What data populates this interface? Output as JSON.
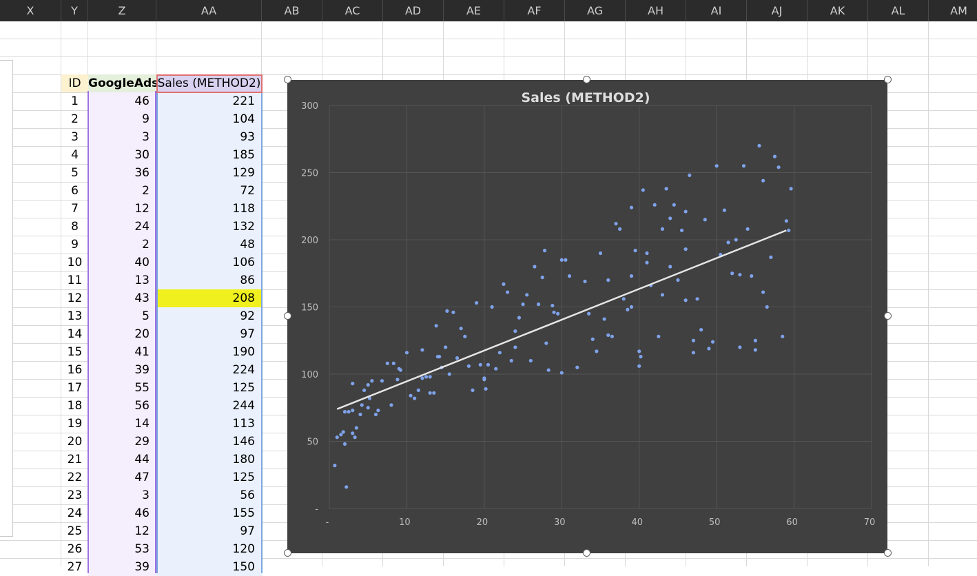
{
  "columns": [
    {
      "label": "X",
      "w": 89
    },
    {
      "label": "Y",
      "w": 39
    },
    {
      "label": "Z",
      "w": 99
    },
    {
      "label": "AA",
      "w": 153
    },
    {
      "label": "AB",
      "w": 88
    },
    {
      "label": "AC",
      "w": 88
    },
    {
      "label": "AD",
      "w": 88
    },
    {
      "label": "AE",
      "w": 88
    },
    {
      "label": "AF",
      "w": 88
    },
    {
      "label": "AG",
      "w": 88
    },
    {
      "label": "AH",
      "w": 88
    },
    {
      "label": "AI",
      "w": 88
    },
    {
      "label": "AJ",
      "w": 88
    },
    {
      "label": "AK",
      "w": 88
    },
    {
      "label": "AL",
      "w": 88
    },
    {
      "label": "AM",
      "w": 88
    }
  ],
  "table": {
    "headers": {
      "id": "ID",
      "googleads": "GoogleAds",
      "sales": "Sales (METHOD2)"
    },
    "rows": [
      {
        "id": "1",
        "g": "46",
        "s": "221"
      },
      {
        "id": "2",
        "g": "9",
        "s": "104"
      },
      {
        "id": "3",
        "g": "3",
        "s": "93"
      },
      {
        "id": "4",
        "g": "30",
        "s": "185"
      },
      {
        "id": "5",
        "g": "36",
        "s": "129"
      },
      {
        "id": "6",
        "g": "2",
        "s": "72"
      },
      {
        "id": "7",
        "g": "12",
        "s": "118"
      },
      {
        "id": "8",
        "g": "24",
        "s": "132"
      },
      {
        "id": "9",
        "g": "2",
        "s": "48"
      },
      {
        "id": "10",
        "g": "40",
        "s": "106"
      },
      {
        "id": "11",
        "g": "13",
        "s": "86"
      },
      {
        "id": "12",
        "g": "43",
        "s": "208",
        "highlight": true
      },
      {
        "id": "13",
        "g": "5",
        "s": "92"
      },
      {
        "id": "14",
        "g": "20",
        "s": "97"
      },
      {
        "id": "15",
        "g": "41",
        "s": "190"
      },
      {
        "id": "16",
        "g": "39",
        "s": "224"
      },
      {
        "id": "17",
        "g": "55",
        "s": "125"
      },
      {
        "id": "18",
        "g": "56",
        "s": "244"
      },
      {
        "id": "19",
        "g": "14",
        "s": "113"
      },
      {
        "id": "20",
        "g": "29",
        "s": "146"
      },
      {
        "id": "21",
        "g": "44",
        "s": "180"
      },
      {
        "id": "22",
        "g": "47",
        "s": "125"
      },
      {
        "id": "23",
        "g": "3",
        "s": "56"
      },
      {
        "id": "24",
        "g": "46",
        "s": "155"
      },
      {
        "id": "25",
        "g": "12",
        "s": "97"
      },
      {
        "id": "26",
        "g": "53",
        "s": "120"
      },
      {
        "id": "27",
        "g": "39",
        "s": "150"
      }
    ]
  },
  "colors": {
    "chart_bg": "#404040",
    "point": "#7fa2ea",
    "trend": "#e6e6e6",
    "highlight": "#f0f01e"
  },
  "chart_data": {
    "type": "scatter",
    "title": "Sales (METHOD2)",
    "xlabel": "",
    "ylabel": "",
    "xlim": [
      0,
      70
    ],
    "ylim": [
      0,
      300
    ],
    "xticks": [
      "-",
      "10",
      "20",
      "30",
      "40",
      "50",
      "60",
      "70"
    ],
    "yticks": [
      "-",
      "50",
      "100",
      "150",
      "200",
      "250",
      "300"
    ],
    "grid": true,
    "legend": "none",
    "trendline": {
      "type": "linear",
      "x": [
        1,
        59
      ],
      "y": [
        74,
        207
      ]
    },
    "points": [
      [
        46,
        221
      ],
      [
        9,
        104
      ],
      [
        3,
        93
      ],
      [
        30,
        185
      ],
      [
        36,
        129
      ],
      [
        2,
        72
      ],
      [
        12,
        118
      ],
      [
        24,
        132
      ],
      [
        2,
        48
      ],
      [
        40,
        106
      ],
      [
        13,
        86
      ],
      [
        43,
        208
      ],
      [
        5,
        92
      ],
      [
        20,
        97
      ],
      [
        41,
        190
      ],
      [
        39,
        224
      ],
      [
        55,
        125
      ],
      [
        56,
        244
      ],
      [
        14,
        113
      ],
      [
        29,
        146
      ],
      [
        44,
        180
      ],
      [
        47,
        125
      ],
      [
        3,
        56
      ],
      [
        46,
        155
      ],
      [
        12,
        97
      ],
      [
        53,
        120
      ],
      [
        39,
        150
      ],
      [
        0.7,
        32
      ],
      [
        1,
        53
      ],
      [
        1.5,
        55
      ],
      [
        1.8,
        57
      ],
      [
        2.2,
        16
      ],
      [
        2.5,
        72
      ],
      [
        3,
        73
      ],
      [
        3.3,
        53
      ],
      [
        3.5,
        60
      ],
      [
        4,
        70
      ],
      [
        4.2,
        77
      ],
      [
        4.5,
        88
      ],
      [
        5,
        75
      ],
      [
        5.2,
        82
      ],
      [
        5.5,
        95
      ],
      [
        6,
        70
      ],
      [
        6.3,
        73
      ],
      [
        6.8,
        95
      ],
      [
        7.5,
        108
      ],
      [
        8,
        77
      ],
      [
        8.3,
        108
      ],
      [
        8.8,
        96
      ],
      [
        9.2,
        103
      ],
      [
        10,
        116
      ],
      [
        10.5,
        84
      ],
      [
        11,
        82
      ],
      [
        11.5,
        88
      ],
      [
        12.5,
        98
      ],
      [
        13,
        98
      ],
      [
        13.5,
        86
      ],
      [
        13.8,
        136
      ],
      [
        14.2,
        113
      ],
      [
        14.5,
        105
      ],
      [
        15,
        120
      ],
      [
        15.2,
        147
      ],
      [
        15.5,
        100
      ],
      [
        16,
        146
      ],
      [
        16.5,
        112
      ],
      [
        17,
        134
      ],
      [
        17.5,
        128
      ],
      [
        18,
        106
      ],
      [
        18.5,
        88
      ],
      [
        19,
        153
      ],
      [
        19.5,
        107
      ],
      [
        20,
        96
      ],
      [
        20.2,
        89
      ],
      [
        20.5,
        107
      ],
      [
        21,
        150
      ],
      [
        21.5,
        104
      ],
      [
        22,
        116
      ],
      [
        22.5,
        167
      ],
      [
        23,
        161
      ],
      [
        23.5,
        110
      ],
      [
        24,
        120
      ],
      [
        24.5,
        142
      ],
      [
        25,
        152
      ],
      [
        25.5,
        159
      ],
      [
        26,
        110
      ],
      [
        26.5,
        180
      ],
      [
        27,
        152
      ],
      [
        27.5,
        172
      ],
      [
        27.8,
        192
      ],
      [
        28,
        123
      ],
      [
        28.3,
        103
      ],
      [
        28.8,
        151
      ],
      [
        29.5,
        145
      ],
      [
        30,
        101
      ],
      [
        30.5,
        185
      ],
      [
        31,
        173
      ],
      [
        32,
        105
      ],
      [
        33,
        169
      ],
      [
        33.5,
        145
      ],
      [
        34,
        126
      ],
      [
        34.5,
        117
      ],
      [
        35,
        190
      ],
      [
        35.5,
        141
      ],
      [
        36,
        170
      ],
      [
        36.5,
        128
      ],
      [
        37,
        212
      ],
      [
        37.5,
        208
      ],
      [
        38,
        156
      ],
      [
        38.5,
        148
      ],
      [
        39,
        173
      ],
      [
        39.5,
        192
      ],
      [
        40,
        117
      ],
      [
        40.2,
        113
      ],
      [
        40.5,
        237
      ],
      [
        41,
        183
      ],
      [
        41.5,
        166
      ],
      [
        42,
        226
      ],
      [
        42.5,
        128
      ],
      [
        43,
        159
      ],
      [
        43.5,
        238
      ],
      [
        44,
        216
      ],
      [
        44.5,
        226
      ],
      [
        45,
        170
      ],
      [
        45.5,
        207
      ],
      [
        46,
        193
      ],
      [
        46.5,
        248
      ],
      [
        47,
        116
      ],
      [
        47.5,
        156
      ],
      [
        48,
        133
      ],
      [
        48.5,
        215
      ],
      [
        49,
        119
      ],
      [
        49.5,
        124
      ],
      [
        50,
        255
      ],
      [
        50.5,
        189
      ],
      [
        51,
        222
      ],
      [
        51.5,
        198
      ],
      [
        52,
        175
      ],
      [
        52.5,
        200
      ],
      [
        53,
        174
      ],
      [
        53.5,
        255
      ],
      [
        54,
        208
      ],
      [
        54.5,
        173
      ],
      [
        55,
        118
      ],
      [
        55.5,
        270
      ],
      [
        56,
        161
      ],
      [
        56.5,
        150
      ],
      [
        57,
        187
      ],
      [
        57.5,
        262
      ],
      [
        58,
        254
      ],
      [
        58.5,
        128
      ],
      [
        59,
        214
      ],
      [
        59.3,
        207
      ],
      [
        59.6,
        238
      ]
    ]
  }
}
